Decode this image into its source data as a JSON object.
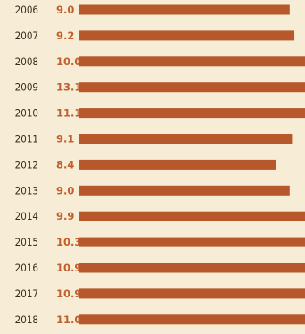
{
  "chart_data": {
    "type": "bar",
    "orientation": "horizontal",
    "title": "",
    "xlabel": "",
    "ylabel": "",
    "categories": [
      "2006",
      "2007",
      "2008",
      "2009",
      "2010",
      "2011",
      "2012",
      "2013",
      "2014",
      "2015",
      "2016",
      "2017",
      "2018"
    ],
    "values": [
      9.0,
      9.2,
      10.0,
      13.1,
      11.1,
      9.1,
      8.4,
      9.0,
      9.9,
      10.3,
      10.9,
      10.9,
      11.0
    ],
    "value_labels": [
      "9.0",
      "9.2",
      "10.0",
      "13.1",
      "11.1",
      "9.1",
      "8.4",
      "9.0",
      "9.9",
      "10.3",
      "10.9",
      "10.9",
      "11.0"
    ],
    "grid": false,
    "legend": "none",
    "colors": {
      "background": "#f7ecd5",
      "bar": "#b6582b",
      "value_text": "#c25f2c",
      "category_text": "#3a2a1c"
    }
  }
}
